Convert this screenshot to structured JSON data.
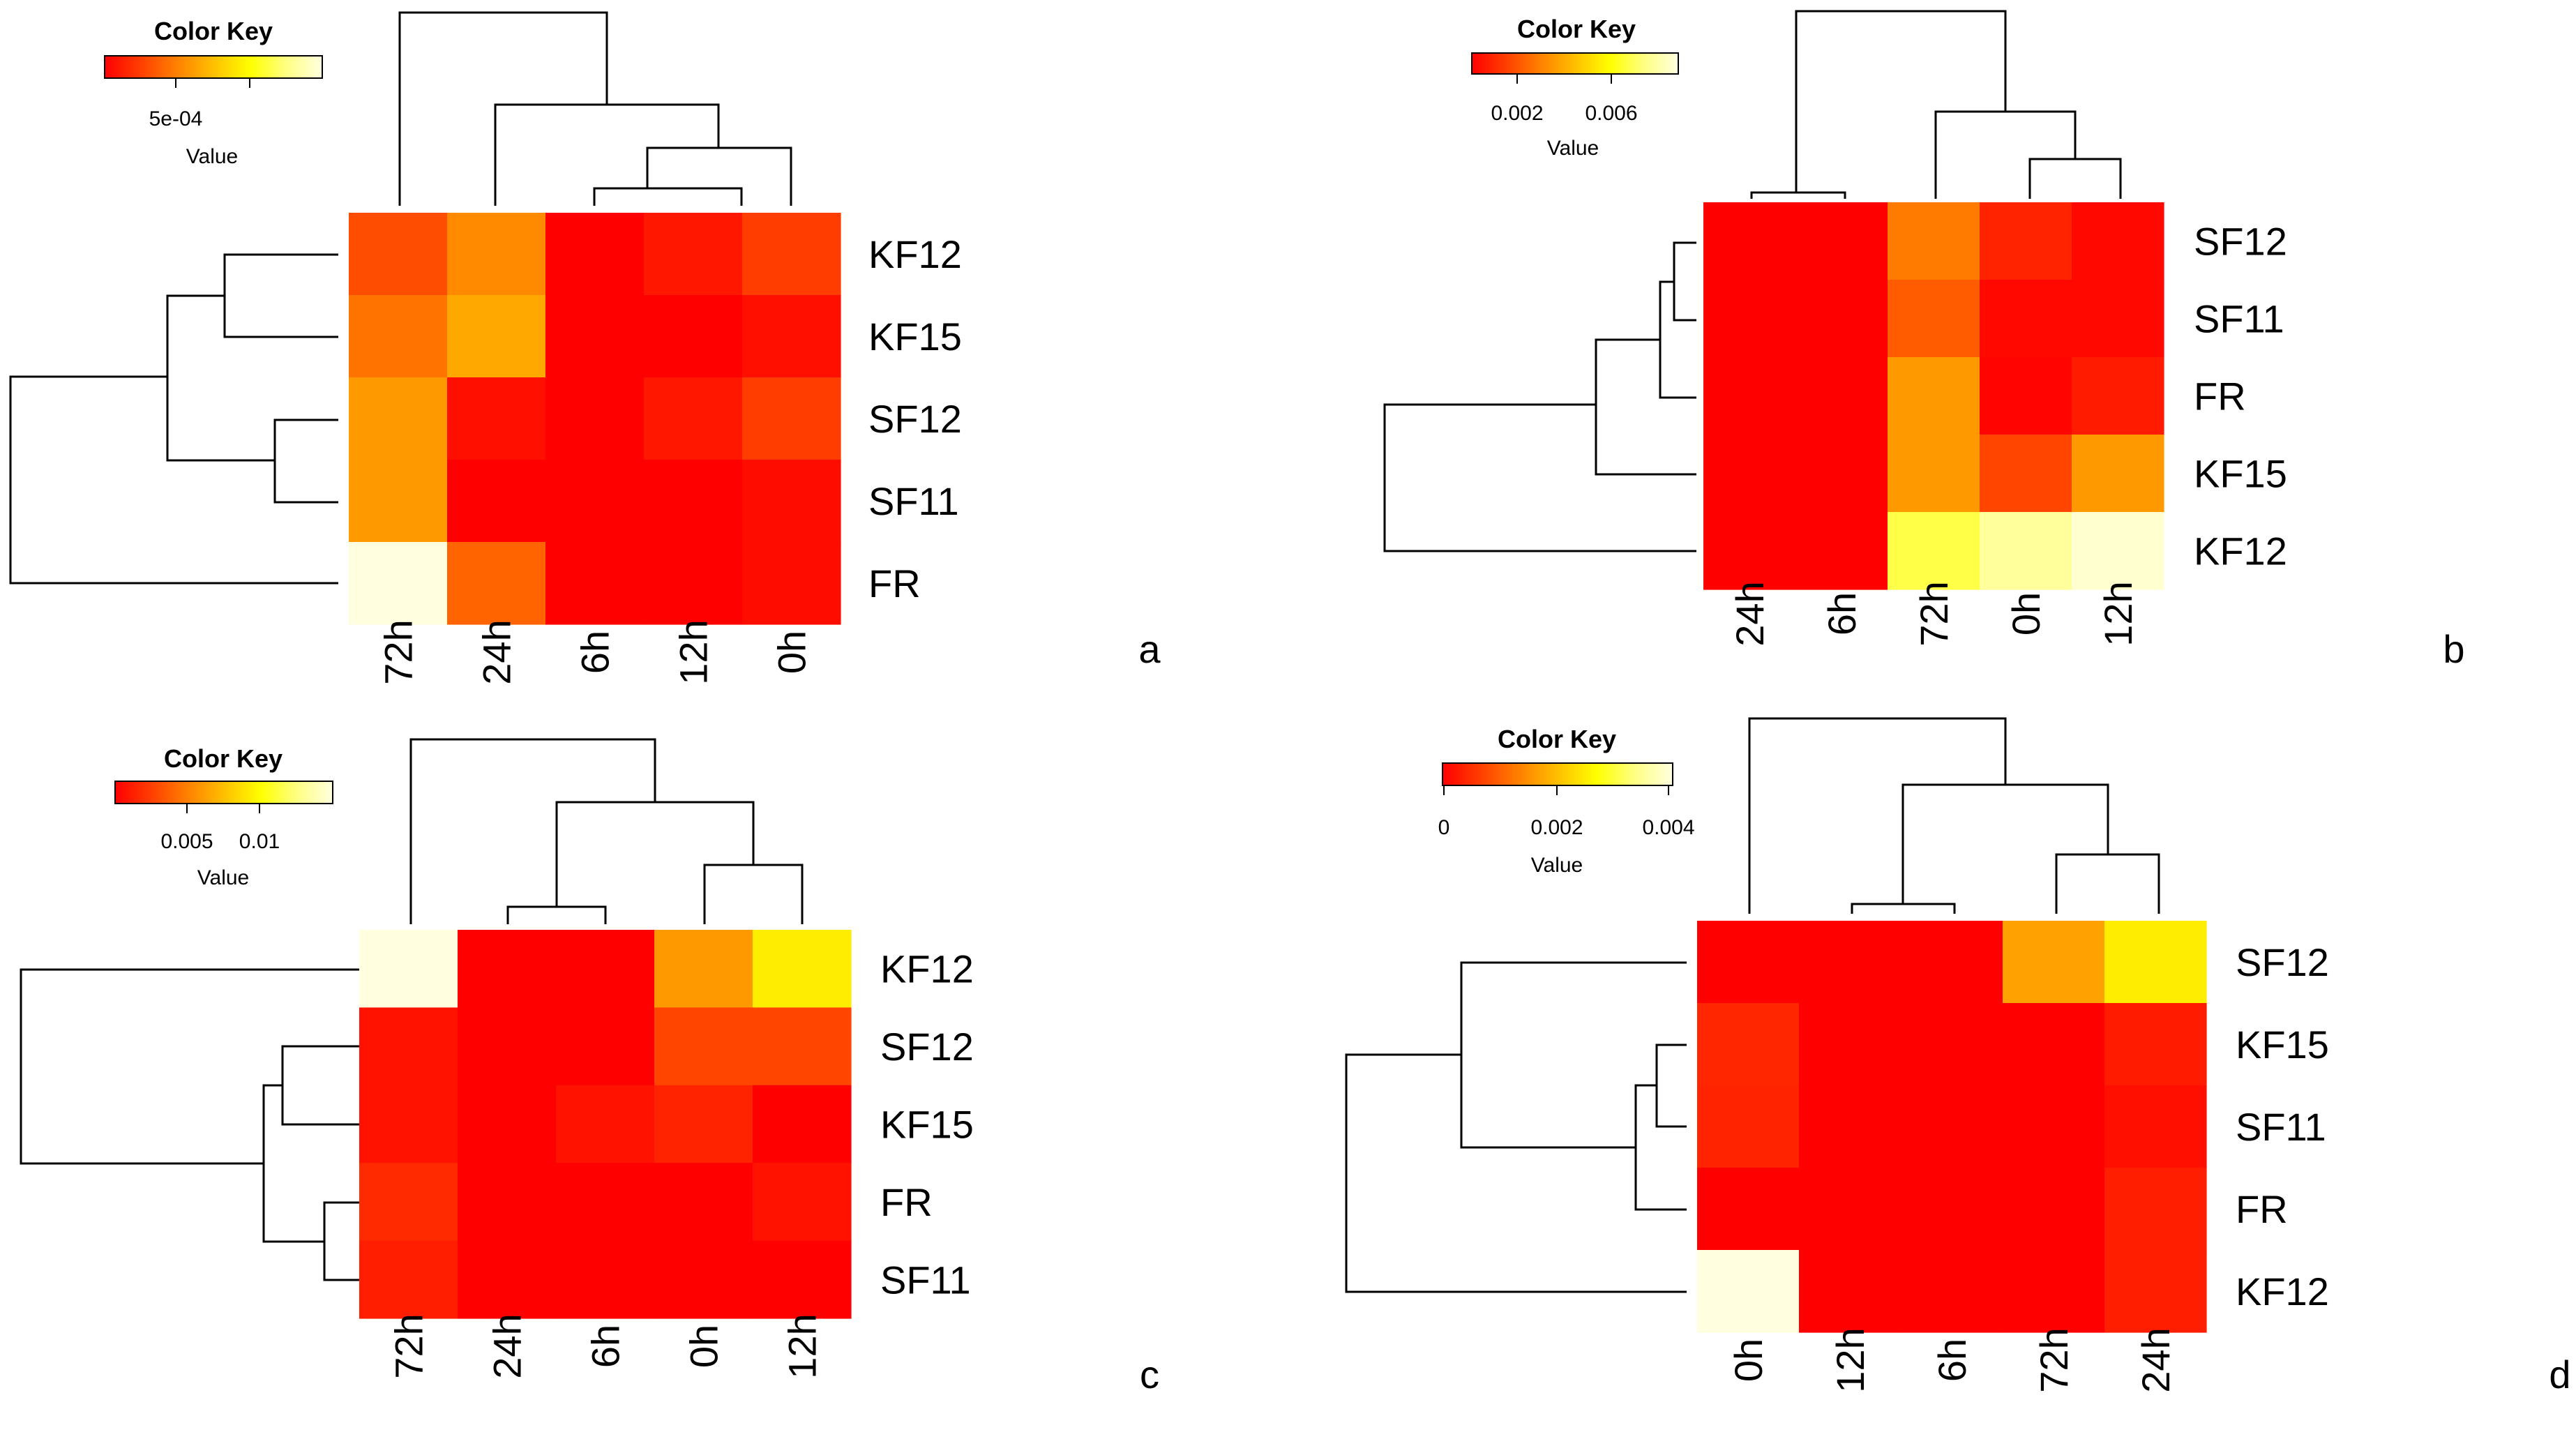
{
  "figure": {
    "panels": [
      {
        "letter": "a",
        "key": {
          "title": "Color Key",
          "value_label": "Value",
          "ticks": [
            "5e-04"
          ]
        }
      },
      {
        "letter": "b",
        "key": {
          "title": "Color Key",
          "value_label": "Value",
          "ticks": [
            "0.002",
            "0.006"
          ]
        }
      },
      {
        "letter": "c",
        "key": {
          "title": "Color Key",
          "value_label": "Value",
          "ticks": [
            "0.005",
            "0.01"
          ]
        }
      },
      {
        "letter": "d",
        "key": {
          "title": "Color Key",
          "value_label": "Value",
          "ticks": [
            "0",
            "0.002",
            "0.004"
          ]
        }
      }
    ]
  },
  "colors": {
    "scale": [
      "#ff0000",
      "#ff4000",
      "#ff8000",
      "#ffbf00",
      "#ffff00",
      "#ffff80",
      "#ffffe0"
    ]
  },
  "chart_data": [
    {
      "type": "heatmap",
      "panel": "a",
      "rows": [
        "KF12",
        "KF15",
        "SF12",
        "SF11",
        "FR"
      ],
      "columns": [
        "72h",
        "24h",
        "6h",
        "12h",
        "0h"
      ],
      "values": [
        [
          0.2,
          0.36,
          0.0,
          0.06,
          0.16
        ],
        [
          0.3,
          0.44,
          0.0,
          0.0,
          0.04
        ],
        [
          0.4,
          0.04,
          0.0,
          0.06,
          0.16
        ],
        [
          0.4,
          0.0,
          0.0,
          0.0,
          0.03
        ],
        [
          1.0,
          0.26,
          0.0,
          0.0,
          0.03
        ]
      ],
      "value_range": [
        0,
        1
      ]
    },
    {
      "type": "heatmap",
      "panel": "b",
      "rows": [
        "SF12",
        "SF11",
        "FR",
        "KF15",
        "KF12"
      ],
      "columns": [
        "24h",
        "6h",
        "72h",
        "0h",
        "12h"
      ],
      "values": [
        [
          0.0,
          0.0,
          0.32,
          0.09,
          0.02
        ],
        [
          0.0,
          0.0,
          0.24,
          0.02,
          0.02
        ],
        [
          0.0,
          0.0,
          0.4,
          0.01,
          0.07
        ],
        [
          0.0,
          0.0,
          0.4,
          0.18,
          0.4
        ],
        [
          0.0,
          0.0,
          0.76,
          0.88,
          0.97
        ]
      ],
      "value_range": [
        0,
        1
      ]
    },
    {
      "type": "heatmap",
      "panel": "c",
      "rows": [
        "KF12",
        "SF12",
        "KF15",
        "FR",
        "SF11"
      ],
      "columns": [
        "72h",
        "24h",
        "6h",
        "0h",
        "12h"
      ],
      "values": [
        [
          1.0,
          0.0,
          0.0,
          0.4,
          0.62
        ],
        [
          0.05,
          0.0,
          0.0,
          0.18,
          0.18
        ],
        [
          0.05,
          0.0,
          0.05,
          0.09,
          0.0
        ],
        [
          0.11,
          0.0,
          0.0,
          0.0,
          0.05
        ],
        [
          0.08,
          0.0,
          0.0,
          0.0,
          0.0
        ]
      ],
      "value_range": [
        0,
        1
      ]
    },
    {
      "type": "heatmap",
      "panel": "d",
      "rows": [
        "SF12",
        "KF15",
        "SF11",
        "FR",
        "KF12"
      ],
      "columns": [
        "0h",
        "12h",
        "6h",
        "72h",
        "24h"
      ],
      "values": [
        [
          0.0,
          0.0,
          0.0,
          0.42,
          0.62
        ],
        [
          0.1,
          0.0,
          0.0,
          0.0,
          0.07
        ],
        [
          0.09,
          0.0,
          0.0,
          0.0,
          0.04
        ],
        [
          0.0,
          0.0,
          0.0,
          0.0,
          0.08
        ],
        [
          1.0,
          0.0,
          0.0,
          0.0,
          0.08
        ]
      ],
      "value_range": [
        0,
        1
      ]
    }
  ]
}
